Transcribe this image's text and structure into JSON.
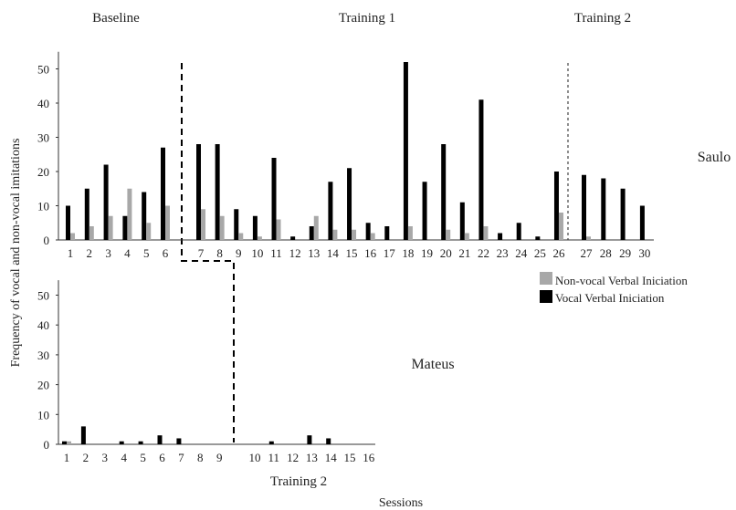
{
  "phase_labels": {
    "baseline": "Baseline",
    "training1": "Training 1",
    "training2_top": "Training 2",
    "training2_bottom": "Training 2"
  },
  "subject_labels": {
    "top": "Saulo",
    "bottom": "Mateus"
  },
  "ylabel": "Frequency of vocal and non-vocal imitations",
  "xlabel": "Sessions",
  "legend": [
    {
      "name": "Non-vocal Verbal Iniciation",
      "color": "#a8a8a8"
    },
    {
      "name": "Vocal Verbal Iniciation",
      "color": "#000000"
    }
  ],
  "colors": {
    "vocal": "#000000",
    "non_vocal": "#a8a8a8",
    "axis": "#333333"
  },
  "chart_data": [
    {
      "type": "bar",
      "subject": "Saulo",
      "ylim": [
        0,
        55
      ],
      "yticks": [
        0,
        10,
        20,
        30,
        40,
        50
      ],
      "categories": [
        "1",
        "2",
        "3",
        "4",
        "5",
        "6",
        "7",
        "8",
        "9",
        "10",
        "11",
        "12",
        "13",
        "14",
        "15",
        "16",
        "17",
        "18",
        "19",
        "20",
        "21",
        "22",
        "23",
        "24",
        "25",
        "26",
        "27",
        "28",
        "29",
        "30"
      ],
      "series": [
        {
          "name": "Vocal Verbal Iniciation",
          "values": [
            10,
            15,
            22,
            7,
            14,
            27,
            28,
            28,
            9,
            7,
            24,
            1,
            4,
            17,
            21,
            5,
            4,
            52,
            17,
            28,
            11,
            41,
            2,
            5,
            1,
            20,
            19,
            18,
            15,
            10
          ]
        },
        {
          "name": "Non-vocal Verbal Iniciation",
          "values": [
            2,
            4,
            7,
            15,
            5,
            10,
            9,
            7,
            2,
            1,
            6,
            0,
            7,
            3,
            3,
            2,
            0,
            4,
            0,
            3,
            2,
            4,
            0,
            0,
            0,
            8,
            1,
            0,
            0,
            0
          ]
        }
      ],
      "phase_breaks_after": [
        "6",
        "26"
      ]
    },
    {
      "type": "bar",
      "subject": "Mateus",
      "ylim": [
        0,
        55
      ],
      "yticks": [
        0,
        10,
        20,
        30,
        40,
        50
      ],
      "categories": [
        "1",
        "2",
        "3",
        "4",
        "5",
        "6",
        "7",
        "8",
        "9",
        "10",
        "11",
        "12",
        "13",
        "14",
        "15",
        "16"
      ],
      "series": [
        {
          "name": "Vocal Verbal Iniciation",
          "values": [
            1,
            6,
            0,
            1,
            1,
            3,
            2,
            0,
            0,
            0,
            1,
            0,
            3,
            2,
            0,
            0
          ]
        },
        {
          "name": "Non-vocal Verbal Iniciation",
          "values": [
            1,
            0,
            0,
            0,
            0,
            0,
            0,
            0,
            0,
            0,
            0,
            0,
            0,
            0,
            0,
            0
          ]
        }
      ],
      "phase_breaks_after": [
        "9"
      ]
    }
  ]
}
